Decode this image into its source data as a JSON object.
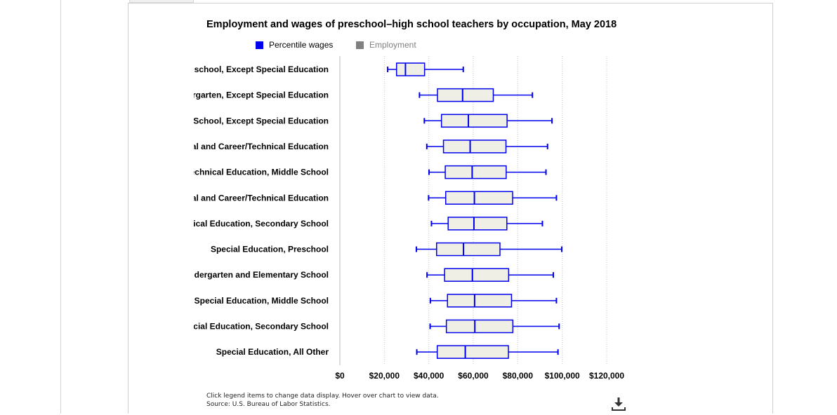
{
  "title": "Employment and wages of preschool–high school teachers by occupation, May 2018",
  "legend": {
    "wages_label": "Percentile wages",
    "employment_label": "Employment"
  },
  "footnote": {
    "line1": "Click legend items to change data display. Hover over chart to view data.",
    "line2": "Source: U.S. Bureau of Labor Statistics."
  },
  "download_icon": "download-icon",
  "colors": {
    "wages": "#0000ee",
    "employment": "#808080",
    "box_fill": "#efefe6",
    "grid": "#c8c8c8"
  },
  "chart_data": {
    "type": "boxplot",
    "orientation": "horizontal",
    "title": "Employment and wages of preschool–high school teachers by occupation, May 2018",
    "categories": [
      "reschool, Except Special Education",
      "ergarten, Except Special Education",
      "/ School, Except Special Education",
      "al and Career/Technical Education",
      "Technical Education, Middle School",
      "al and Career/Technical Education",
      "nical Education, Secondary School",
      "Special Education, Preschool",
      "ndergarten and Elementary School",
      "Special Education, Middle School",
      "ecial Education, Secondary School",
      "Special Education, All Other"
    ],
    "series": [
      {
        "name": "Percentile wages",
        "p10": [
          21500,
          35800,
          38000,
          39100,
          40100,
          39900,
          41200,
          34400,
          39200,
          40700,
          40600,
          34600
        ],
        "p25": [
          25500,
          43900,
          45700,
          46600,
          47400,
          47600,
          48700,
          43500,
          47100,
          48400,
          47900,
          43800
        ],
        "median": [
          29500,
          55200,
          57800,
          58600,
          59500,
          60500,
          60300,
          55600,
          59600,
          60600,
          60700,
          56400
        ],
        "p75": [
          38100,
          69000,
          75200,
          74700,
          74800,
          77700,
          75100,
          72000,
          75900,
          77200,
          77800,
          75800
        ],
        "p90": [
          55500,
          86600,
          95400,
          93400,
          92700,
          97400,
          91100,
          99800,
          96000,
          97400,
          98600,
          98100
        ]
      }
    ],
    "xlim": [
      0,
      120000
    ],
    "ticks": [
      "$0",
      "$20,000",
      "$40,000",
      "$60,000",
      "$80,000",
      "$100,000",
      "$120,000"
    ],
    "tick_values": [
      0,
      20000,
      40000,
      60000,
      80000,
      100000,
      120000
    ],
    "grid": true,
    "legend_position": "top"
  }
}
